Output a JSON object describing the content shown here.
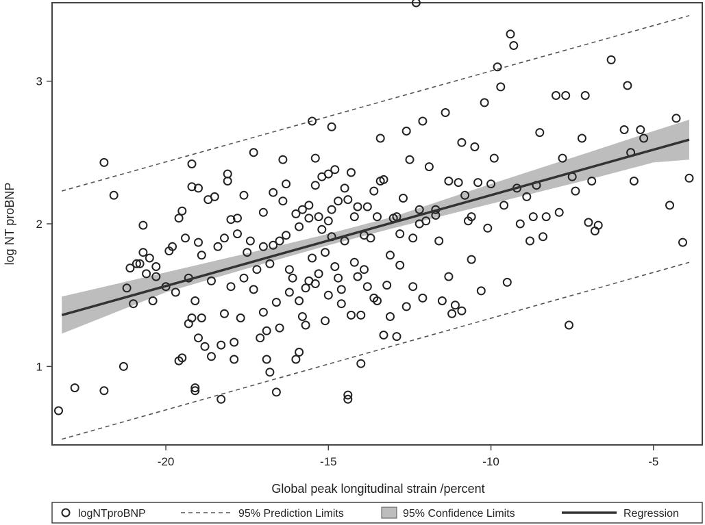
{
  "chart_data": {
    "type": "scatter",
    "xlabel": "Global peak longitudinal strain /percent",
    "ylabel": "log NT proBNP",
    "xlim": [
      -23.5,
      -3.5
    ],
    "ylim": [
      0.45,
      3.55
    ],
    "x_ticks": [
      -20,
      -15,
      -10,
      -5
    ],
    "y_ticks": [
      1,
      2,
      3
    ],
    "x_tick_labels": [
      "-20",
      "-15",
      "-10",
      "-5"
    ],
    "y_tick_labels": [
      "1",
      "2",
      "3"
    ],
    "grid": false,
    "legend_position": "bottom",
    "regression": {
      "x": [
        -23.2,
        -3.9
      ],
      "y": [
        1.36,
        2.59
      ]
    },
    "confidence_band": {
      "x": [
        -23.2,
        -20,
        -17,
        -15,
        -13,
        -10,
        -7,
        -5,
        -3.9
      ],
      "upper": [
        1.49,
        1.66,
        1.82,
        1.93,
        2.05,
        2.28,
        2.5,
        2.65,
        2.73
      ],
      "lower": [
        1.23,
        1.52,
        1.72,
        1.85,
        1.97,
        2.14,
        2.31,
        2.43,
        2.45
      ]
    },
    "prediction_limits": {
      "x": [
        -23.2,
        -3.9
      ],
      "upper": [
        2.23,
        3.46
      ],
      "lower": [
        0.49,
        1.73
      ]
    },
    "series": [
      {
        "name": "logNTproBNP",
        "points": [
          [
            -23.3,
            0.69
          ],
          [
            -22.8,
            0.85
          ],
          [
            -21.9,
            0.83
          ],
          [
            -21.9,
            2.43
          ],
          [
            -21.6,
            2.2
          ],
          [
            -21.3,
            1.0
          ],
          [
            -21.2,
            1.55
          ],
          [
            -21.1,
            1.69
          ],
          [
            -21.0,
            1.44
          ],
          [
            -20.9,
            1.72
          ],
          [
            -20.8,
            1.72
          ],
          [
            -20.7,
            1.99
          ],
          [
            -20.7,
            1.8
          ],
          [
            -20.6,
            1.65
          ],
          [
            -20.5,
            1.76
          ],
          [
            -20.4,
            1.46
          ],
          [
            -20.3,
            1.7
          ],
          [
            -20.3,
            1.63
          ],
          [
            -20.0,
            1.56
          ],
          [
            -19.9,
            1.81
          ],
          [
            -19.8,
            1.84
          ],
          [
            -19.7,
            1.52
          ],
          [
            -19.6,
            1.04
          ],
          [
            -19.6,
            2.04
          ],
          [
            -19.5,
            2.09
          ],
          [
            -19.5,
            1.06
          ],
          [
            -19.4,
            1.9
          ],
          [
            -19.3,
            1.3
          ],
          [
            -19.3,
            1.62
          ],
          [
            -19.2,
            1.34
          ],
          [
            -19.2,
            2.42
          ],
          [
            -19.2,
            2.26
          ],
          [
            -19.1,
            1.46
          ],
          [
            -19.1,
            0.85
          ],
          [
            -19.1,
            0.83
          ],
          [
            -19.0,
            1.2
          ],
          [
            -19.0,
            1.87
          ],
          [
            -19.0,
            2.25
          ],
          [
            -18.9,
            1.34
          ],
          [
            -18.8,
            1.14
          ],
          [
            -18.7,
            2.17
          ],
          [
            -18.6,
            1.07
          ],
          [
            -18.5,
            2.19
          ],
          [
            -18.4,
            1.84
          ],
          [
            -18.3,
            0.77
          ],
          [
            -18.3,
            1.15
          ],
          [
            -18.2,
            1.37
          ],
          [
            -18.1,
            2.3
          ],
          [
            -18.1,
            2.35
          ],
          [
            -18.0,
            1.56
          ],
          [
            -18.0,
            2.03
          ],
          [
            -17.9,
            1.05
          ],
          [
            -17.9,
            1.17
          ],
          [
            -17.8,
            1.93
          ],
          [
            -17.8,
            2.04
          ],
          [
            -17.6,
            1.62
          ],
          [
            -17.5,
            1.8
          ],
          [
            -17.4,
            1.88
          ],
          [
            -17.3,
            2.5
          ],
          [
            -17.2,
            1.68
          ],
          [
            -17.1,
            1.2
          ],
          [
            -17.0,
            1.38
          ],
          [
            -17.0,
            2.08
          ],
          [
            -16.9,
            1.25
          ],
          [
            -16.9,
            1.05
          ],
          [
            -16.8,
            0.96
          ],
          [
            -16.7,
            1.85
          ],
          [
            -16.6,
            0.82
          ],
          [
            -16.5,
            1.27
          ],
          [
            -16.4,
            2.16
          ],
          [
            -16.4,
            2.45
          ],
          [
            -16.3,
            1.92
          ],
          [
            -16.3,
            2.28
          ],
          [
            -16.2,
            1.68
          ],
          [
            -16.1,
            1.62
          ],
          [
            -16.0,
            1.05
          ],
          [
            -15.9,
            1.1
          ],
          [
            -15.9,
            1.46
          ],
          [
            -15.8,
            1.35
          ],
          [
            -15.7,
            1.29
          ],
          [
            -15.7,
            1.55
          ],
          [
            -15.6,
            2.04
          ],
          [
            -15.6,
            2.13
          ],
          [
            -15.5,
            1.76
          ],
          [
            -15.4,
            2.27
          ],
          [
            -15.4,
            1.58
          ],
          [
            -15.3,
            1.65
          ],
          [
            -15.3,
            2.05
          ],
          [
            -15.2,
            1.96
          ],
          [
            -15.1,
            1.8
          ],
          [
            -15.0,
            1.5
          ],
          [
            -15.0,
            2.02
          ],
          [
            -14.9,
            1.91
          ],
          [
            -14.9,
            2.68
          ],
          [
            -14.8,
            1.7
          ],
          [
            -14.7,
            1.62
          ],
          [
            -14.7,
            2.16
          ],
          [
            -14.6,
            1.44
          ],
          [
            -14.5,
            1.88
          ],
          [
            -14.5,
            2.25
          ],
          [
            -14.4,
            0.8
          ],
          [
            -14.4,
            0.77
          ],
          [
            -14.3,
            1.36
          ],
          [
            -14.2,
            1.73
          ],
          [
            -14.1,
            2.12
          ],
          [
            -14.0,
            1.02
          ],
          [
            -14.0,
            1.36
          ],
          [
            -13.9,
            1.68
          ],
          [
            -13.8,
            1.56
          ],
          [
            -13.7,
            1.9
          ],
          [
            -13.6,
            2.23
          ],
          [
            -13.5,
            1.46
          ],
          [
            -13.4,
            2.6
          ],
          [
            -13.3,
            1.22
          ],
          [
            -13.2,
            1.57
          ],
          [
            -13.1,
            1.78
          ],
          [
            -13.0,
            2.04
          ],
          [
            -12.9,
            1.21
          ],
          [
            -12.8,
            1.71
          ],
          [
            -12.7,
            2.18
          ],
          [
            -12.6,
            1.42
          ],
          [
            -12.5,
            2.45
          ],
          [
            -12.4,
            1.9
          ],
          [
            -12.3,
            3.55
          ],
          [
            -12.2,
            2.1
          ],
          [
            -12.1,
            1.48
          ],
          [
            -12.0,
            2.02
          ],
          [
            -11.9,
            2.4
          ],
          [
            -11.7,
            2.06
          ],
          [
            -11.6,
            1.88
          ],
          [
            -11.5,
            1.46
          ],
          [
            -11.4,
            2.78
          ],
          [
            -11.3,
            1.63
          ],
          [
            -11.2,
            1.37
          ],
          [
            -11.1,
            1.43
          ],
          [
            -11.0,
            2.29
          ],
          [
            -10.9,
            1.39
          ],
          [
            -10.8,
            2.2
          ],
          [
            -10.7,
            2.02
          ],
          [
            -10.6,
            1.75
          ],
          [
            -10.5,
            2.54
          ],
          [
            -10.4,
            2.29
          ],
          [
            -10.3,
            1.53
          ],
          [
            -10.2,
            2.85
          ],
          [
            -10.1,
            1.97
          ],
          [
            -10.0,
            2.28
          ],
          [
            -9.9,
            2.46
          ],
          [
            -9.8,
            3.1
          ],
          [
            -9.7,
            2.96
          ],
          [
            -9.6,
            2.13
          ],
          [
            -9.5,
            1.59
          ],
          [
            -9.4,
            3.33
          ],
          [
            -9.3,
            3.25
          ],
          [
            -9.2,
            2.25
          ],
          [
            -9.1,
            2.0
          ],
          [
            -8.9,
            2.19
          ],
          [
            -8.8,
            1.88
          ],
          [
            -8.7,
            2.05
          ],
          [
            -8.6,
            2.27
          ],
          [
            -8.5,
            2.64
          ],
          [
            -8.4,
            1.91
          ],
          [
            -8.3,
            2.05
          ],
          [
            -8.0,
            2.9
          ],
          [
            -7.9,
            2.08
          ],
          [
            -7.8,
            2.46
          ],
          [
            -7.7,
            2.9
          ],
          [
            -7.6,
            1.29
          ],
          [
            -7.5,
            2.33
          ],
          [
            -7.4,
            2.23
          ],
          [
            -7.2,
            2.6
          ],
          [
            -7.1,
            2.9
          ],
          [
            -7.0,
            2.01
          ],
          [
            -6.9,
            2.3
          ],
          [
            -6.8,
            1.95
          ],
          [
            -6.7,
            1.99
          ],
          [
            -6.3,
            3.15
          ],
          [
            -5.9,
            2.66
          ],
          [
            -5.8,
            2.97
          ],
          [
            -5.7,
            2.5
          ],
          [
            -5.6,
            2.3
          ],
          [
            -5.4,
            2.66
          ],
          [
            -5.3,
            2.6
          ],
          [
            -4.5,
            2.13
          ],
          [
            -4.3,
            2.74
          ],
          [
            -4.1,
            1.87
          ],
          [
            -3.9,
            2.32
          ],
          [
            -18.2,
            1.9
          ],
          [
            -17.6,
            2.2
          ],
          [
            -17.0,
            1.84
          ],
          [
            -16.7,
            2.22
          ],
          [
            -16.0,
            2.07
          ],
          [
            -15.5,
            2.72
          ],
          [
            -15.2,
            2.33
          ],
          [
            -14.8,
            2.38
          ],
          [
            -14.3,
            2.36
          ],
          [
            -13.9,
            1.92
          ],
          [
            -13.4,
            2.3
          ],
          [
            -12.9,
            2.05
          ],
          [
            -12.6,
            2.65
          ],
          [
            -12.1,
            2.72
          ],
          [
            -11.7,
            2.1
          ],
          [
            -11.3,
            2.3
          ],
          [
            -10.9,
            2.57
          ],
          [
            -10.6,
            2.05
          ],
          [
            -16.8,
            1.72
          ],
          [
            -16.2,
            1.52
          ],
          [
            -15.6,
            1.6
          ],
          [
            -15.1,
            1.32
          ],
          [
            -14.6,
            1.54
          ],
          [
            -14.1,
            1.63
          ],
          [
            -13.6,
            1.48
          ],
          [
            -13.1,
            1.35
          ],
          [
            -12.4,
            1.56
          ],
          [
            -17.3,
            1.54
          ],
          [
            -16.6,
            1.45
          ],
          [
            -15.9,
            1.98
          ],
          [
            -15.4,
            2.46
          ],
          [
            -14.9,
            2.1
          ],
          [
            -14.4,
            2.17
          ],
          [
            -13.8,
            2.12
          ],
          [
            -13.3,
            2.31
          ],
          [
            -12.8,
            1.93
          ],
          [
            -18.6,
            1.6
          ],
          [
            -18.9,
            1.78
          ],
          [
            -17.7,
            1.34
          ],
          [
            -16.5,
            1.88
          ],
          [
            -15.8,
            2.1
          ],
          [
            -15.0,
            2.35
          ],
          [
            -14.2,
            2.05
          ],
          [
            -13.5,
            2.05
          ],
          [
            -12.2,
            2.0
          ]
        ]
      },
      {
        "name": "95% Prediction Limits"
      },
      {
        "name": "95% Confidence Limits"
      },
      {
        "name": "Regression"
      }
    ]
  }
}
